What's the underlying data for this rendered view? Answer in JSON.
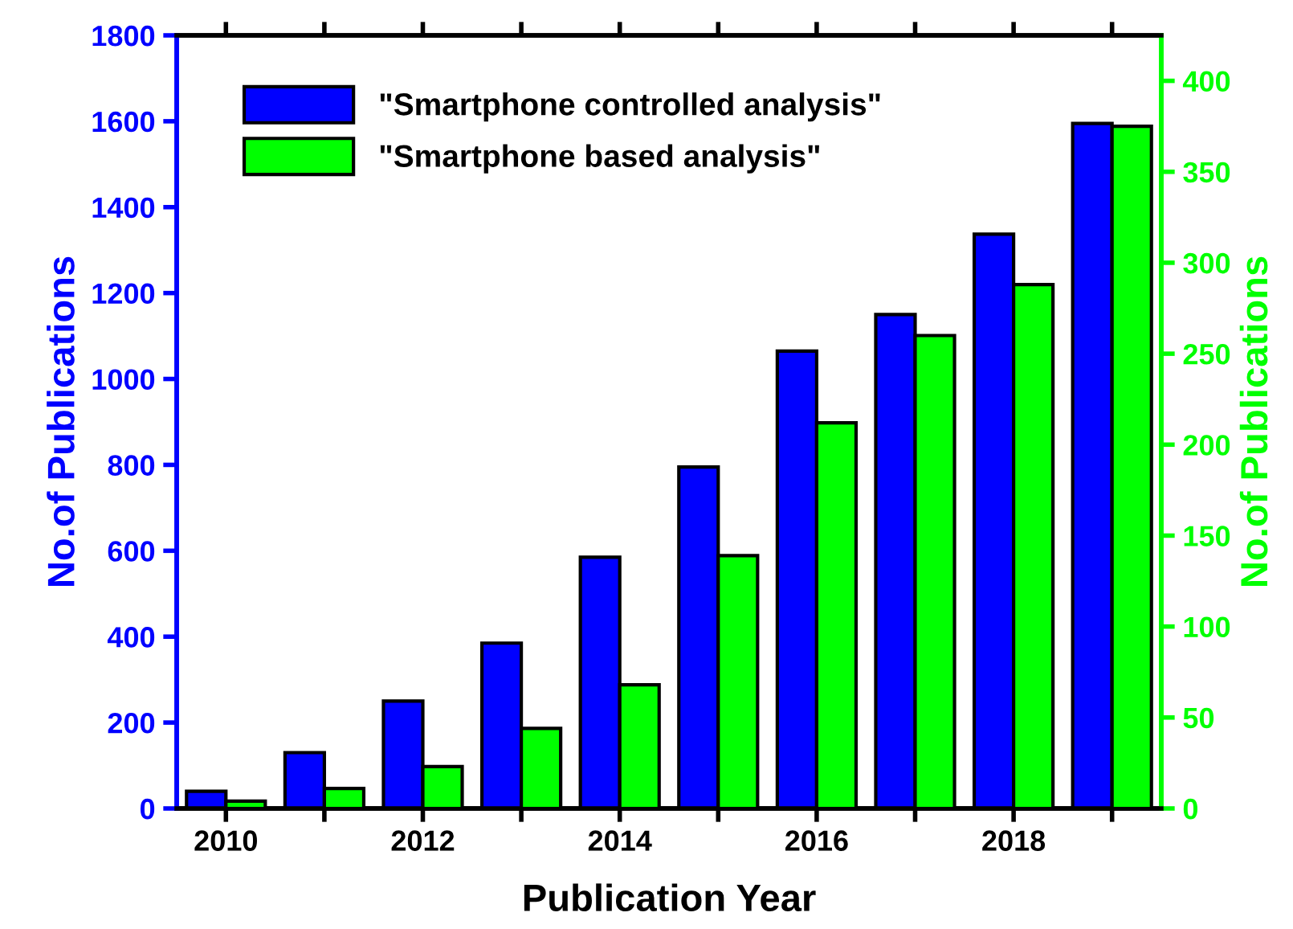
{
  "chart_data": {
    "type": "bar",
    "xlabel": "Publication Year",
    "ylabel": "No.of Publications",
    "y2label": "No.of Publications",
    "x": [
      2010,
      2011,
      2012,
      2013,
      2014,
      2015,
      2016,
      2017,
      2018,
      2019
    ],
    "series": [
      {
        "name": "\"Smartphone controlled analysis\"",
        "color": "#0000ff",
        "values": [
          40,
          130,
          250,
          385,
          585,
          795,
          1065,
          1150,
          1337,
          1595
        ]
      },
      {
        "name": "\"Smartphone based analysis\"",
        "color": "#00ff00",
        "axis": "y2",
        "values": [
          4,
          11,
          23,
          44,
          68,
          139,
          212,
          260,
          288,
          375
        ]
      }
    ],
    "xlim": [
      2009.5,
      2019.5
    ],
    "xticks": [
      2010,
      {
        "value": 2011,
        "label": null
      },
      2012,
      {
        "value": 2013,
        "label": null
      },
      2014,
      {
        "value": 2015,
        "label": null
      },
      2016,
      {
        "value": 2017,
        "label": null
      },
      2018,
      {
        "value": 2019,
        "label": null
      }
    ],
    "ylim": [
      0,
      1800
    ],
    "yticks": [
      0,
      200,
      400,
      600,
      800,
      1000,
      1200,
      1400,
      1600,
      1800
    ],
    "y2lim": [
      0,
      425
    ],
    "y2ticks": [
      0,
      50,
      100,
      150,
      200,
      250,
      300,
      350,
      400
    ],
    "legend": "top left",
    "grid": false
  }
}
